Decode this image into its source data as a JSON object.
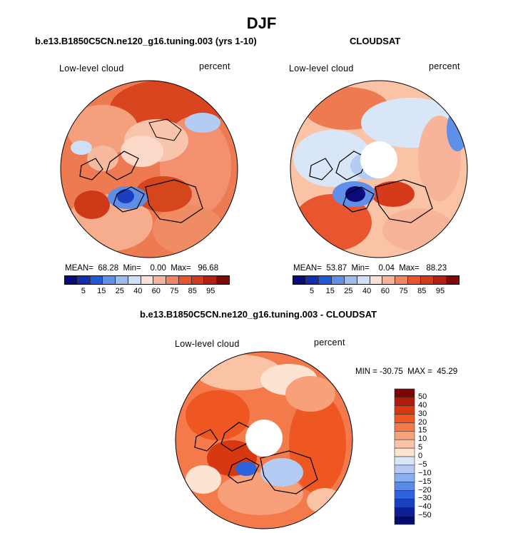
{
  "figure": {
    "title": "DJF"
  },
  "panels": [
    {
      "title": "b.e13.B1850C5CN.ne120_g16.tuning.003 (yrs 1-10)",
      "left_label": "Low-level cloud",
      "right_label": "percent",
      "stats_text": "MEAN=  68.28  Min=    0.00  Max=   96.68",
      "stats": {
        "mean": 68.28,
        "min": 0.0,
        "max": 96.68
      },
      "has_pole_hole": false
    },
    {
      "title": "CLOUDSAT",
      "left_label": "Low-level cloud",
      "right_label": "percent",
      "stats_text": "MEAN=  53.87  Min=    0.04  Max=   88.23",
      "stats": {
        "mean": 53.87,
        "min": 0.04,
        "max": 88.23
      },
      "has_pole_hole": true
    },
    {
      "title": "b.e13.B1850C5CN.ne120_g16.tuning.003 - CLOUDSAT",
      "left_label": "Low-level cloud",
      "right_label": "percent",
      "stats_text": "MIN = -30.75  MAX =  45.29",
      "stats": {
        "min": -30.75,
        "max": 45.29
      },
      "has_pole_hole": true
    }
  ],
  "colorbar_abs": {
    "ticks": [
      "5",
      "15",
      "25",
      "40",
      "60",
      "75",
      "85",
      "95"
    ],
    "colors": [
      "#0a0a7a",
      "#1030b0",
      "#1f5ad8",
      "#5f8fe6",
      "#9cbcf0",
      "#cfdff8",
      "#fbe0d4",
      "#f8b49a",
      "#f2845f",
      "#e8552e",
      "#d53a1a",
      "#b5210e",
      "#7d0a06"
    ]
  },
  "colorbar_diff": {
    "ticks": [
      "50",
      "40",
      "30",
      "20",
      "15",
      "10",
      "5",
      "0",
      "−5",
      "−10",
      "−15",
      "−20",
      "−30",
      "−40",
      "−50"
    ],
    "colors": [
      "#7a0604",
      "#b01c0c",
      "#d8380f",
      "#ee5722",
      "#f47a4c",
      "#f7a07a",
      "#fac3a6",
      "#fde3d2",
      "#d9e6f8",
      "#b4ccf4",
      "#8aaeee",
      "#5b8ae6",
      "#2f63dd",
      "#1a3fc0",
      "#0c1f96",
      "#050a6b"
    ]
  }
}
